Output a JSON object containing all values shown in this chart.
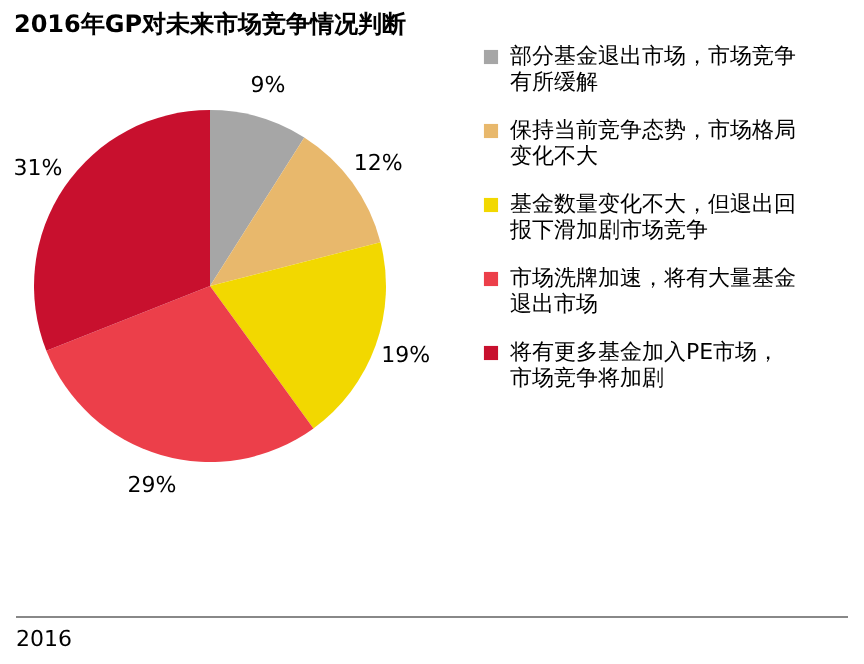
{
  "chart_data": {
    "type": "pie",
    "title": "2016年GP对未来市场竞争情况判断",
    "categories": [
      "部分基金退出市场，市场竞争有所缓解",
      "保持当前竞争态势，市场格局变化不大",
      "基金数量变化不大，但退出回报下滑加剧市场竞争",
      "市场洗牌加速，将有大量基金退出市场",
      "将有更多基金加入PE市场，市场竞争将加剧"
    ],
    "values": [
      9,
      12,
      19,
      29,
      31
    ],
    "colors": [
      "#a6a6a6",
      "#e8b86c",
      "#f2d800",
      "#ec3f4a",
      "#c8102e"
    ],
    "value_labels": [
      "9%",
      "12%",
      "19%",
      "29%",
      "31%"
    ],
    "legend": "right",
    "annotations": [
      "2016"
    ]
  }
}
